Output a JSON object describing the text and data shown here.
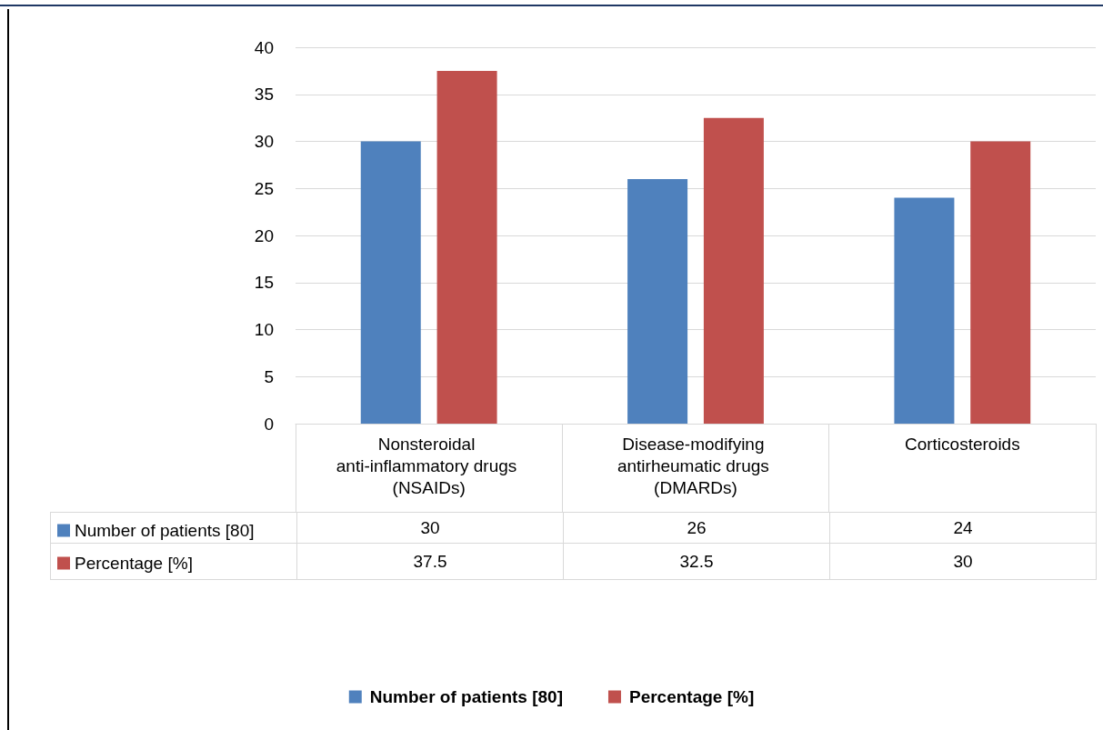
{
  "chart_data": {
    "type": "bar",
    "categories": [
      "Nonsteroidal anti-inflammatory drugs (NSAIDs)",
      "Disease-modifying antirheumatic drugs (DMARDs)",
      "Corticosteroids"
    ],
    "series": [
      {
        "name": "Number of patients [80]",
        "color": "#4f81bd",
        "values": [
          30,
          26,
          24
        ]
      },
      {
        "name": "Percentage [%]",
        "color": "#c0504d",
        "values": [
          37.5,
          32.5,
          30
        ]
      }
    ],
    "ylim": [
      0,
      40
    ],
    "yticks": [
      0,
      5,
      10,
      15,
      20,
      25,
      30,
      35,
      40
    ],
    "grid": "y",
    "legend": "bottom",
    "data_labels": true
  }
}
